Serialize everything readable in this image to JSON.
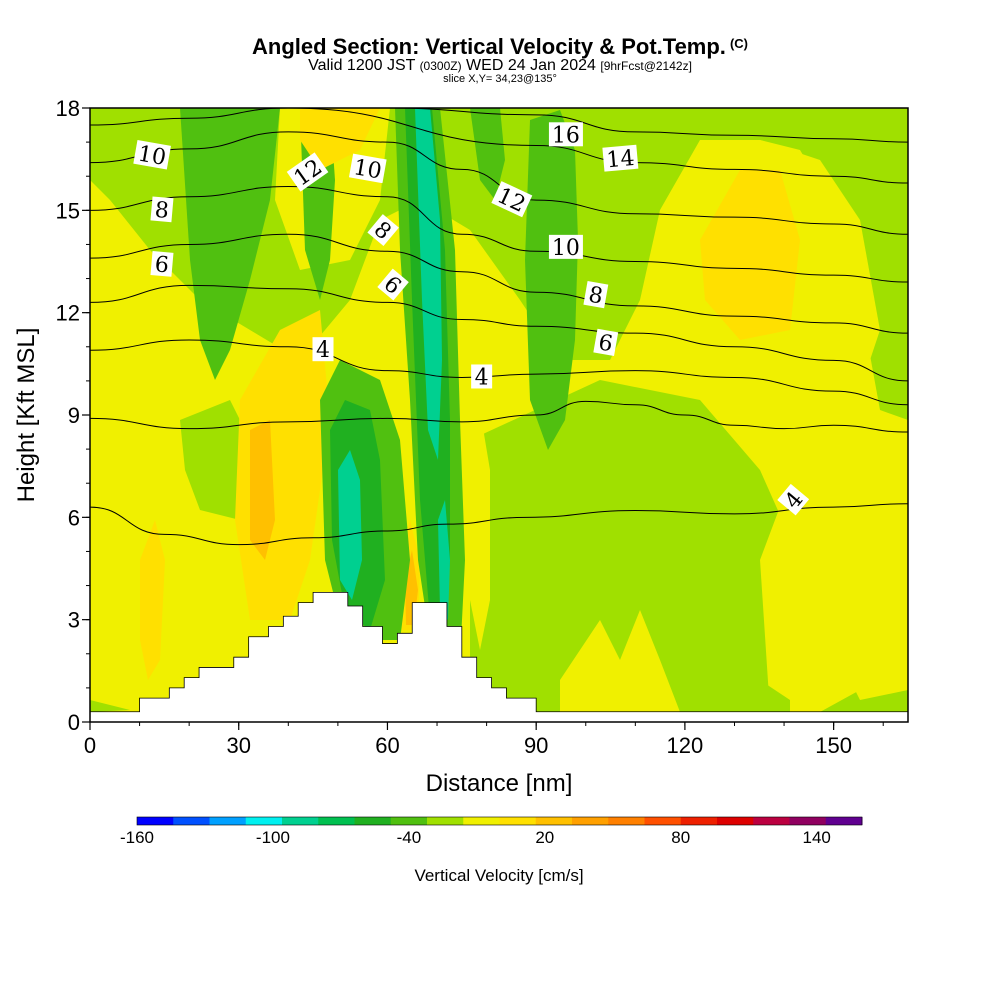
{
  "title": {
    "main": "Angled Section: Vertical Velocity & Pot.Temp.",
    "tag": "(C)",
    "valid_prefix": "Valid 1200 JST",
    "valid_z": "(0300Z)",
    "valid_date": "WED 24 Jan 2024",
    "fcst": "[9hrFcst@2142z]",
    "slice": "slice X,Y= 34,23@135°"
  },
  "chart_data": {
    "type": "heatmap",
    "xlabel": "Distance [nm]",
    "ylabel": "Height [Kft MSL]",
    "xlim": [
      0,
      165
    ],
    "ylim": [
      0,
      18
    ],
    "x_ticks": [
      0,
      30,
      60,
      90,
      120,
      150
    ],
    "y_ticks": [
      0,
      3,
      6,
      9,
      12,
      15,
      18
    ],
    "field": "Vertical Velocity",
    "colorbar": {
      "title": "Vertical Velocity [cm/s]",
      "tick_labels": [
        "-160",
        "-100",
        "-40",
        "20",
        "80",
        "140"
      ],
      "tick_values": [
        -160,
        -100,
        -40,
        20,
        80,
        140
      ],
      "range": [
        -160,
        160
      ],
      "colors": [
        "#0000ff",
        "#0050ff",
        "#00a0ff",
        "#00f0f0",
        "#00d090",
        "#00c050",
        "#20b020",
        "#50c010",
        "#a0e000",
        "#f0f000",
        "#ffe000",
        "#ffc000",
        "#ffa000",
        "#ff8000",
        "#ff5000",
        "#ee2000",
        "#dd0000",
        "#bb0040",
        "#900060",
        "#600090"
      ]
    },
    "terrain_kft": [
      [
        0,
        0.3
      ],
      [
        10,
        0.3
      ],
      [
        10,
        0.7
      ],
      [
        16,
        0.7
      ],
      [
        16,
        1.0
      ],
      [
        19,
        1.0
      ],
      [
        19,
        1.3
      ],
      [
        22,
        1.3
      ],
      [
        22,
        1.6
      ],
      [
        29,
        1.6
      ],
      [
        29,
        1.9
      ],
      [
        32,
        1.9
      ],
      [
        32,
        2.5
      ],
      [
        36,
        2.5
      ],
      [
        36,
        2.8
      ],
      [
        39,
        2.8
      ],
      [
        39,
        3.1
      ],
      [
        42,
        3.1
      ],
      [
        42,
        3.5
      ],
      [
        45,
        3.5
      ],
      [
        45,
        3.8
      ],
      [
        52,
        3.8
      ],
      [
        52,
        3.4
      ],
      [
        55,
        3.4
      ],
      [
        55,
        2.8
      ],
      [
        59,
        2.8
      ],
      [
        59,
        2.3
      ],
      [
        62,
        2.3
      ],
      [
        62,
        2.6
      ],
      [
        65,
        2.6
      ],
      [
        65,
        3.5
      ],
      [
        72,
        3.5
      ],
      [
        72,
        2.8
      ],
      [
        75,
        2.8
      ],
      [
        75,
        1.9
      ],
      [
        78,
        1.9
      ],
      [
        78,
        1.3
      ],
      [
        81,
        1.3
      ],
      [
        81,
        1.0
      ],
      [
        84,
        1.0
      ],
      [
        84,
        0.7
      ],
      [
        90,
        0.7
      ],
      [
        90,
        0.3
      ],
      [
        165,
        0.3
      ]
    ],
    "theta_contours_C": [
      {
        "level": 4,
        "points": [
          [
            0,
            6.3
          ],
          [
            15,
            5.5
          ],
          [
            30,
            5.2
          ],
          [
            45,
            5.4
          ],
          [
            60,
            5.6
          ],
          [
            72,
            5.8
          ],
          [
            88,
            6.0
          ],
          [
            110,
            6.2
          ],
          [
            130,
            6.1
          ],
          [
            150,
            6.3
          ],
          [
            165,
            6.4
          ]
        ]
      },
      {
        "level": 4,
        "points": [
          [
            0,
            8.9
          ],
          [
            20,
            8.6
          ],
          [
            40,
            8.8
          ],
          [
            60,
            8.9
          ],
          [
            75,
            8.8
          ],
          [
            90,
            9.0
          ],
          [
            100,
            9.4
          ],
          [
            110,
            9.3
          ],
          [
            120,
            9.0
          ],
          [
            130,
            8.7
          ],
          [
            140,
            8.6
          ],
          [
            150,
            8.7
          ],
          [
            165,
            8.5
          ]
        ]
      },
      {
        "level": 4,
        "points": [
          [
            0,
            10.9
          ],
          [
            20,
            11.2
          ],
          [
            40,
            11.0
          ],
          [
            60,
            10.3
          ],
          [
            75,
            10.1
          ],
          [
            90,
            10.2
          ],
          [
            110,
            10.3
          ],
          [
            130,
            10.1
          ],
          [
            150,
            9.7
          ],
          [
            165,
            9.3
          ]
        ]
      },
      {
        "level": 6,
        "points": [
          [
            0,
            12.3
          ],
          [
            20,
            12.8
          ],
          [
            40,
            12.7
          ],
          [
            60,
            12.3
          ],
          [
            75,
            11.8
          ],
          [
            90,
            11.6
          ],
          [
            110,
            11.4
          ],
          [
            130,
            11.0
          ],
          [
            150,
            10.6
          ],
          [
            165,
            10.0
          ]
        ]
      },
      {
        "level": 8,
        "points": [
          [
            0,
            13.6
          ],
          [
            20,
            14.0
          ],
          [
            40,
            14.3
          ],
          [
            60,
            13.8
          ],
          [
            75,
            13.2
          ],
          [
            90,
            12.6
          ],
          [
            110,
            12.2
          ],
          [
            130,
            11.9
          ],
          [
            150,
            11.7
          ],
          [
            165,
            11.4
          ]
        ]
      },
      {
        "level": 10,
        "points": [
          [
            0,
            15.0
          ],
          [
            20,
            15.4
          ],
          [
            40,
            15.7
          ],
          [
            60,
            15.4
          ],
          [
            75,
            14.3
          ],
          [
            90,
            13.8
          ],
          [
            110,
            13.5
          ],
          [
            130,
            13.3
          ],
          [
            150,
            13.1
          ],
          [
            165,
            12.9
          ]
        ]
      },
      {
        "level": 12,
        "points": [
          [
            0,
            16.4
          ],
          [
            20,
            16.8
          ],
          [
            40,
            17.3
          ],
          [
            60,
            17.0
          ],
          [
            75,
            16.2
          ],
          [
            90,
            15.3
          ],
          [
            110,
            14.9
          ],
          [
            130,
            14.8
          ],
          [
            150,
            14.6
          ],
          [
            165,
            14.3
          ]
        ]
      },
      {
        "level": 14,
        "points": [
          [
            0,
            17.5
          ],
          [
            20,
            17.7
          ],
          [
            40,
            18.0
          ],
          [
            90,
            16.9
          ],
          [
            110,
            16.4
          ],
          [
            130,
            16.2
          ],
          [
            150,
            16.0
          ],
          [
            165,
            15.8
          ]
        ]
      },
      {
        "level": 16,
        "points": [
          [
            60,
            18.0
          ],
          [
            90,
            17.8
          ],
          [
            110,
            17.3
          ],
          [
            130,
            17.2
          ],
          [
            150,
            17.1
          ],
          [
            165,
            17.0
          ]
        ]
      }
    ],
    "contour_labels": [
      {
        "text": "10",
        "x": 12.5,
        "y": 16.6,
        "angle": 10
      },
      {
        "text": "8",
        "x": 14.5,
        "y": 15.0,
        "angle": 5
      },
      {
        "text": "6",
        "x": 14.5,
        "y": 13.4,
        "angle": 5
      },
      {
        "text": "12",
        "x": 44,
        "y": 16.1,
        "angle": -35
      },
      {
        "text": "10",
        "x": 56,
        "y": 16.2,
        "angle": 10
      },
      {
        "text": "8",
        "x": 59,
        "y": 14.4,
        "angle": 40
      },
      {
        "text": "6",
        "x": 61,
        "y": 12.8,
        "angle": 40
      },
      {
        "text": "4",
        "x": 47,
        "y": 10.9,
        "angle": 0
      },
      {
        "text": "4",
        "x": 79,
        "y": 10.1,
        "angle": 0
      },
      {
        "text": "16",
        "x": 96,
        "y": 17.2,
        "angle": 0
      },
      {
        "text": "14",
        "x": 107,
        "y": 16.5,
        "angle": -5
      },
      {
        "text": "12",
        "x": 85,
        "y": 15.3,
        "angle": 25
      },
      {
        "text": "10",
        "x": 96,
        "y": 13.9,
        "angle": 0
      },
      {
        "text": "8",
        "x": 102,
        "y": 12.5,
        "angle": 10
      },
      {
        "text": "6",
        "x": 104,
        "y": 11.1,
        "angle": 10
      },
      {
        "text": "4",
        "x": 142,
        "y": 6.5,
        "angle": -50
      }
    ],
    "grid": false
  }
}
